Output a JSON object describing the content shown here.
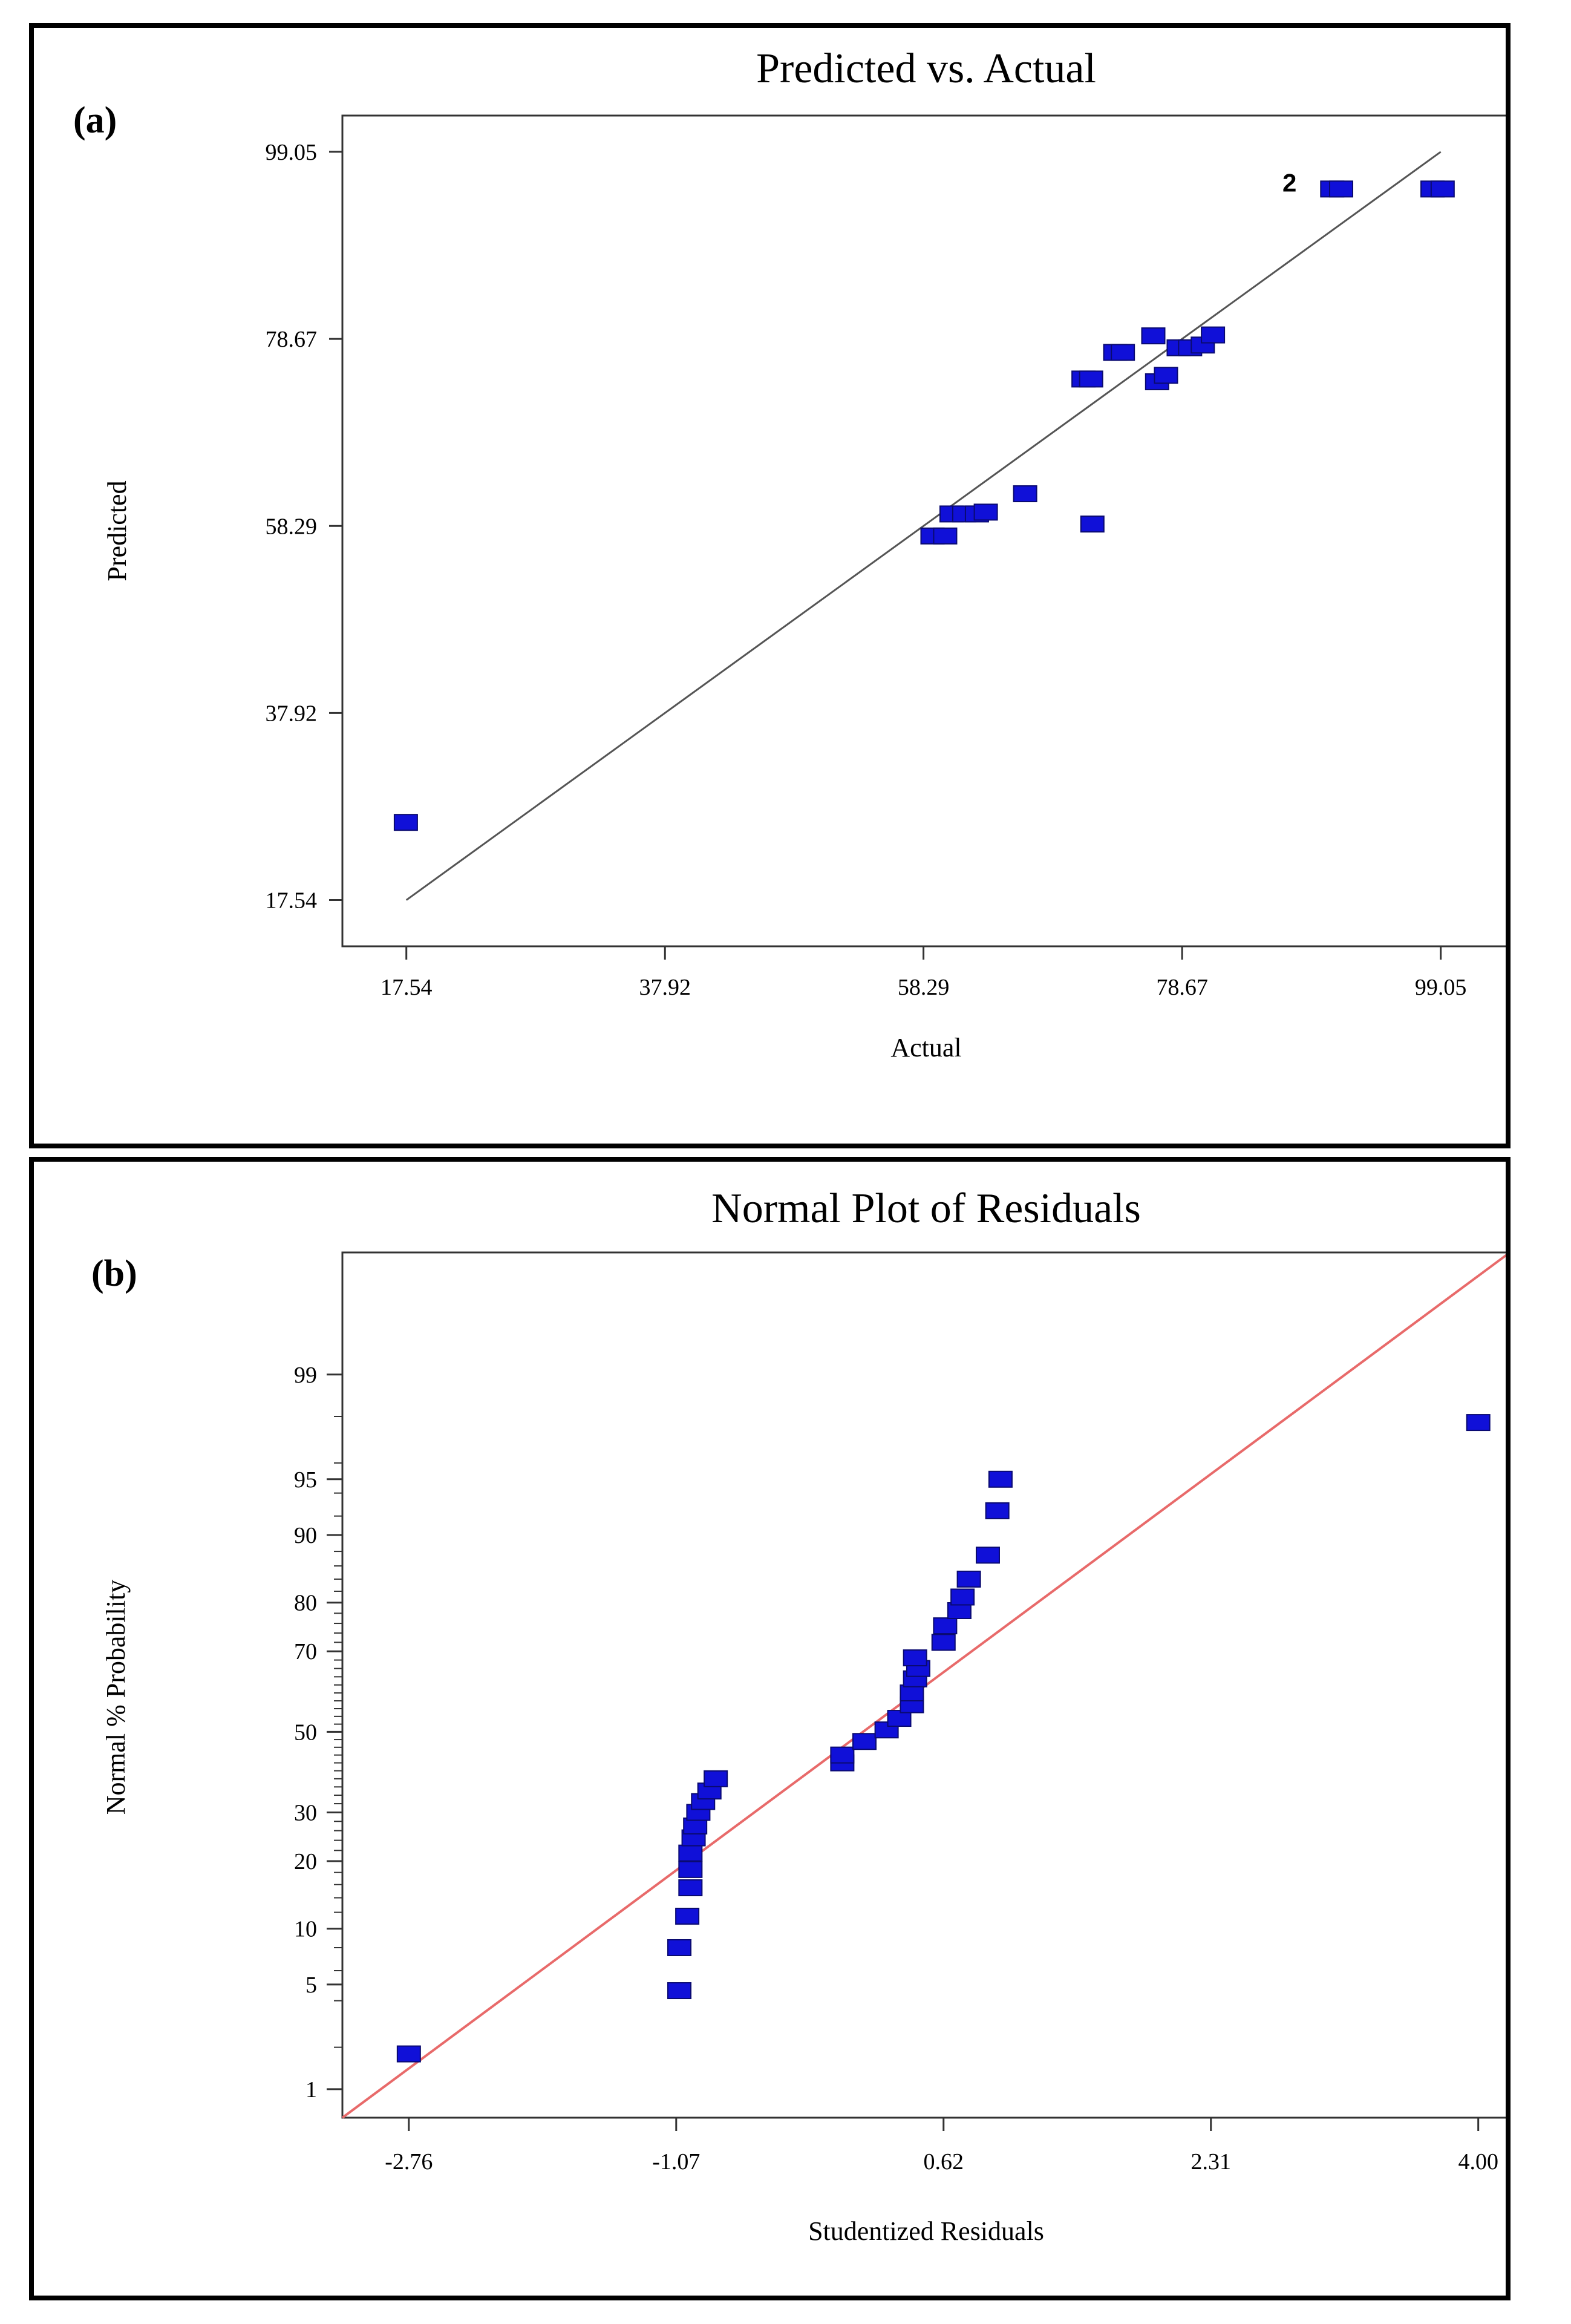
{
  "panels": {
    "a_label": "(a)",
    "b_label": "(b)"
  },
  "chart_data": [
    {
      "type": "scatter",
      "title": "Predicted vs. Actual",
      "xlabel": "Actual",
      "ylabel": "Predicted",
      "xlim": [
        12.5,
        104.5
      ],
      "ylim": [
        12.5,
        103.0
      ],
      "xticks": [
        "17.54",
        "37.92",
        "58.29",
        "78.67",
        "99.05"
      ],
      "yticks": [
        "17.54",
        "37.92",
        "58.29",
        "78.67",
        "99.05"
      ],
      "reference_line": {
        "from": [
          17.54,
          17.54
        ],
        "to": [
          99.05,
          99.05
        ],
        "color": "#555555"
      },
      "marker_color": "#1010d8",
      "annotation": {
        "text": "2",
        "x": 89.5,
        "y": 95.0
      },
      "points": [
        {
          "x": 17.5,
          "y": 26.0
        },
        {
          "x": 59.0,
          "y": 57.2
        },
        {
          "x": 60.0,
          "y": 57.2
        },
        {
          "x": 60.5,
          "y": 59.6
        },
        {
          "x": 61.5,
          "y": 59.6
        },
        {
          "x": 62.5,
          "y": 59.6
        },
        {
          "x": 63.2,
          "y": 59.8
        },
        {
          "x": 66.3,
          "y": 61.8
        },
        {
          "x": 70.9,
          "y": 74.3
        },
        {
          "x": 71.5,
          "y": 74.3
        },
        {
          "x": 71.6,
          "y": 58.5
        },
        {
          "x": 73.4,
          "y": 77.2
        },
        {
          "x": 74.0,
          "y": 77.2
        },
        {
          "x": 76.4,
          "y": 79.0
        },
        {
          "x": 76.7,
          "y": 74.0
        },
        {
          "x": 77.4,
          "y": 74.7
        },
        {
          "x": 78.4,
          "y": 77.7
        },
        {
          "x": 79.3,
          "y": 77.7
        },
        {
          "x": 80.3,
          "y": 78.0
        },
        {
          "x": 81.1,
          "y": 79.1
        },
        {
          "x": 90.5,
          "y": 95.0
        },
        {
          "x": 91.2,
          "y": 95.0
        },
        {
          "x": 98.4,
          "y": 95.0
        },
        {
          "x": 99.2,
          "y": 95.0
        }
      ]
    },
    {
      "type": "scatter",
      "title": "Normal Plot of Residuals",
      "xlabel": "Studentized Residuals",
      "ylabel": "Normal % Probability",
      "xlim": [
        -3.18,
        4.2
      ],
      "xticks": [
        "-2.76",
        "-1.07",
        "0.62",
        "2.31",
        "4.00"
      ],
      "yticks": [
        "1",
        "5",
        "10",
        "20",
        "30",
        "50",
        "70",
        "80",
        "90",
        "95",
        "99"
      ],
      "reference_line": {
        "from": [
          -3.18,
          0.6
        ],
        "to": [
          4.2,
          99.91
        ],
        "color": "#e86a6a"
      },
      "marker_color": "#1010d8",
      "points": [
        {
          "x": -2.76,
          "y": 1.8
        },
        {
          "x": -1.05,
          "y": 4.6
        },
        {
          "x": -1.05,
          "y": 8.0
        },
        {
          "x": -1.0,
          "y": 11.5
        },
        {
          "x": -0.98,
          "y": 15.5
        },
        {
          "x": -0.98,
          "y": 18.5
        },
        {
          "x": -0.98,
          "y": 21.5
        },
        {
          "x": -0.96,
          "y": 24.5
        },
        {
          "x": -0.95,
          "y": 27.0
        },
        {
          "x": -0.93,
          "y": 30.0
        },
        {
          "x": -0.9,
          "y": 32.5
        },
        {
          "x": -0.86,
          "y": 35.0
        },
        {
          "x": -0.82,
          "y": 38.0
        },
        {
          "x": -0.02,
          "y": 42.0
        },
        {
          "x": -0.02,
          "y": 44.0
        },
        {
          "x": 0.12,
          "y": 47.5
        },
        {
          "x": 0.26,
          "y": 50.5
        },
        {
          "x": 0.34,
          "y": 53.5
        },
        {
          "x": 0.42,
          "y": 57.0
        },
        {
          "x": 0.42,
          "y": 60.0
        },
        {
          "x": 0.44,
          "y": 63.5
        },
        {
          "x": 0.46,
          "y": 66.0
        },
        {
          "x": 0.44,
          "y": 68.5
        },
        {
          "x": 0.62,
          "y": 72.0
        },
        {
          "x": 0.63,
          "y": 75.5
        },
        {
          "x": 0.72,
          "y": 78.5
        },
        {
          "x": 0.74,
          "y": 81.0
        },
        {
          "x": 0.78,
          "y": 84.0
        },
        {
          "x": 0.9,
          "y": 87.5
        },
        {
          "x": 0.96,
          "y": 92.5
        },
        {
          "x": 0.98,
          "y": 95.0
        },
        {
          "x": 4.0,
          "y": 97.8
        }
      ]
    }
  ]
}
